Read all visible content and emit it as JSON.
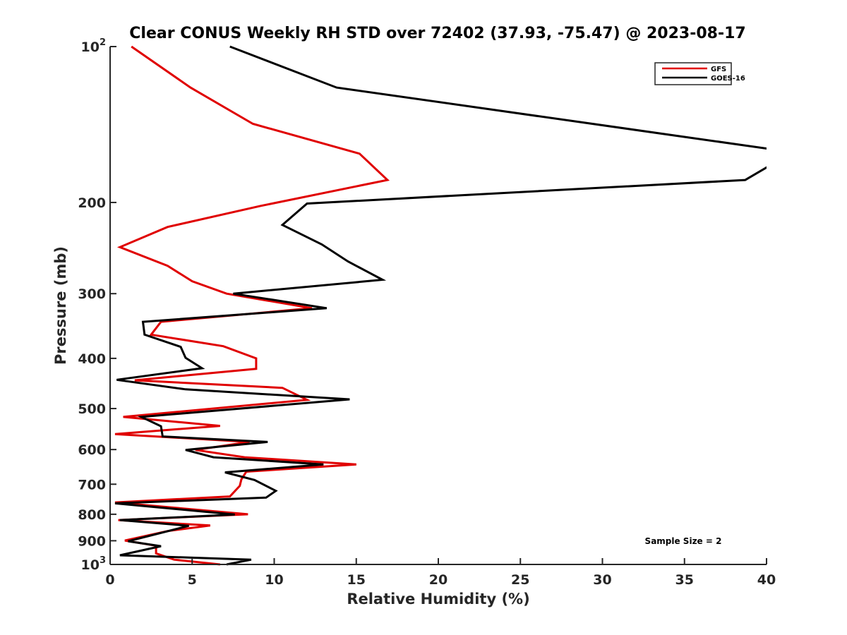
{
  "chart_data": {
    "type": "line",
    "title": "Clear CONUS Weekly RH STD over 72402 (37.93, -75.47) @ 2023-08-17",
    "xlabel": "Relative Humidity (%)",
    "ylabel": "Pressure (mb)",
    "xlim": [
      0,
      40
    ],
    "ylim": [
      100,
      1000
    ],
    "y_scale": "log",
    "y_reversed": true,
    "grid": false,
    "x_ticks": [
      0,
      5,
      10,
      15,
      20,
      25,
      30,
      35,
      40
    ],
    "x_tick_labels": [
      "0",
      "5",
      "10",
      "15",
      "20",
      "25",
      "30",
      "35",
      "40"
    ],
    "y_ticks": [
      100,
      200,
      300,
      400,
      500,
      600,
      700,
      800,
      900,
      1000
    ],
    "y_tick_labels": [
      {
        "base": "10",
        "sup": "2"
      },
      {
        "base": "200",
        "sup": ""
      },
      {
        "base": "300",
        "sup": ""
      },
      {
        "base": "400",
        "sup": ""
      },
      {
        "base": "500",
        "sup": ""
      },
      {
        "base": "600",
        "sup": ""
      },
      {
        "base": "700",
        "sup": ""
      },
      {
        "base": "800",
        "sup": ""
      },
      {
        "base": "900",
        "sup": ""
      },
      {
        "base": "10",
        "sup": "3"
      }
    ],
    "legend": {
      "position": "top-right",
      "entries": [
        "GFS",
        "GOES-16"
      ]
    },
    "annotation": "Sample Size = 2",
    "series": [
      {
        "name": "GFS",
        "color": "#e00000",
        "points": [
          [
            1.3,
            100
          ],
          [
            4.9,
            120
          ],
          [
            8.7,
            141
          ],
          [
            15.2,
            161
          ],
          [
            16.9,
            181
          ],
          [
            9.2,
            203
          ],
          [
            3.5,
            223
          ],
          [
            0.6,
            244
          ],
          [
            3.5,
            265
          ],
          [
            5.0,
            284
          ],
          [
            7.1,
            300
          ],
          [
            12.3,
            320
          ],
          [
            3.1,
            340
          ],
          [
            2.5,
            360
          ],
          [
            6.9,
            379
          ],
          [
            8.9,
            400
          ],
          [
            8.9,
            419
          ],
          [
            1.5,
            441
          ],
          [
            10.5,
            456
          ],
          [
            12.0,
            481
          ],
          [
            0.8,
            519
          ],
          [
            6.7,
            540
          ],
          [
            0.3,
            560
          ],
          [
            8.5,
            580
          ],
          [
            5.2,
            601
          ],
          [
            8.2,
            621
          ],
          [
            15.0,
            641
          ],
          [
            8.3,
            662
          ],
          [
            8.0,
            685
          ],
          [
            7.9,
            705
          ],
          [
            7.3,
            739
          ],
          [
            0.3,
            759
          ],
          [
            8.4,
            800
          ],
          [
            0.5,
            821
          ],
          [
            6.1,
            841
          ],
          [
            3.5,
            862
          ],
          [
            0.9,
            899
          ],
          [
            2.8,
            920
          ],
          [
            2.8,
            952
          ],
          [
            3.9,
            979
          ],
          [
            6.7,
            1000
          ]
        ]
      },
      {
        "name": "GOES-16",
        "color": "#000000",
        "points": [
          [
            7.3,
            100
          ],
          [
            13.8,
            120
          ],
          [
            41.0,
            159
          ],
          [
            41.0,
            164
          ],
          [
            38.7,
            181
          ],
          [
            12.0,
            201
          ],
          [
            10.5,
            221
          ],
          [
            12.9,
            241
          ],
          [
            14.5,
            260
          ],
          [
            16.6,
            282
          ],
          [
            7.5,
            300
          ],
          [
            13.2,
            320
          ],
          [
            2.0,
            340
          ],
          [
            2.1,
            360
          ],
          [
            4.3,
            380
          ],
          [
            4.6,
            399
          ],
          [
            5.6,
            418
          ],
          [
            0.4,
            440
          ],
          [
            4.6,
            459
          ],
          [
            14.6,
            480
          ],
          [
            1.9,
            519
          ],
          [
            3.1,
            541
          ],
          [
            3.2,
            566
          ],
          [
            9.6,
            580
          ],
          [
            4.6,
            601
          ],
          [
            6.3,
            621
          ],
          [
            13.0,
            641
          ],
          [
            7.0,
            664
          ],
          [
            8.8,
            687
          ],
          [
            10.1,
            721
          ],
          [
            9.5,
            743
          ],
          [
            0.3,
            762
          ],
          [
            7.6,
            801
          ],
          [
            0.6,
            821
          ],
          [
            4.8,
            842
          ],
          [
            1.1,
            902
          ],
          [
            3.1,
            922
          ],
          [
            0.6,
            960
          ],
          [
            8.6,
            979
          ],
          [
            7.1,
            1000
          ]
        ]
      }
    ]
  }
}
